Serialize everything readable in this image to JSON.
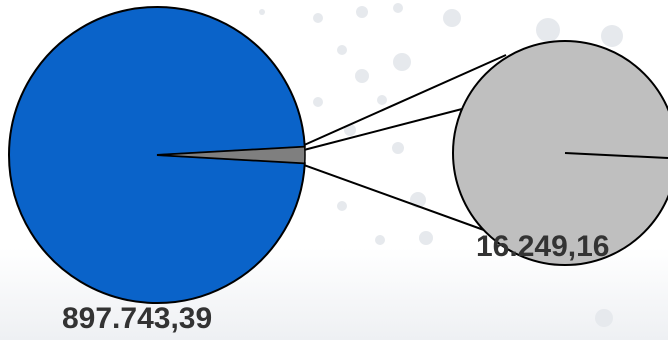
{
  "colors": {
    "main_slice": "#0a63c9",
    "detail_slice": "#7f7f7f",
    "detail_circle": "#bfbfbf",
    "outline": "#000000",
    "background": "#ffffff",
    "decor_dots": "#e6e9ed",
    "decor_band": "#f2f4f6"
  },
  "chart_data": {
    "type": "pie",
    "subtype": "pie-of-pie",
    "title": "",
    "slices": [
      {
        "label": "897.743,39",
        "value": 897743.39,
        "color": "#0a63c9"
      },
      {
        "label": "16.249,16",
        "value": 16249.16,
        "color": "#7f7f7f"
      }
    ],
    "detail_pie": {
      "slices": [
        {
          "value": 16249.16,
          "color": "#bfbfbf"
        }
      ],
      "label": "16.249,16"
    }
  }
}
